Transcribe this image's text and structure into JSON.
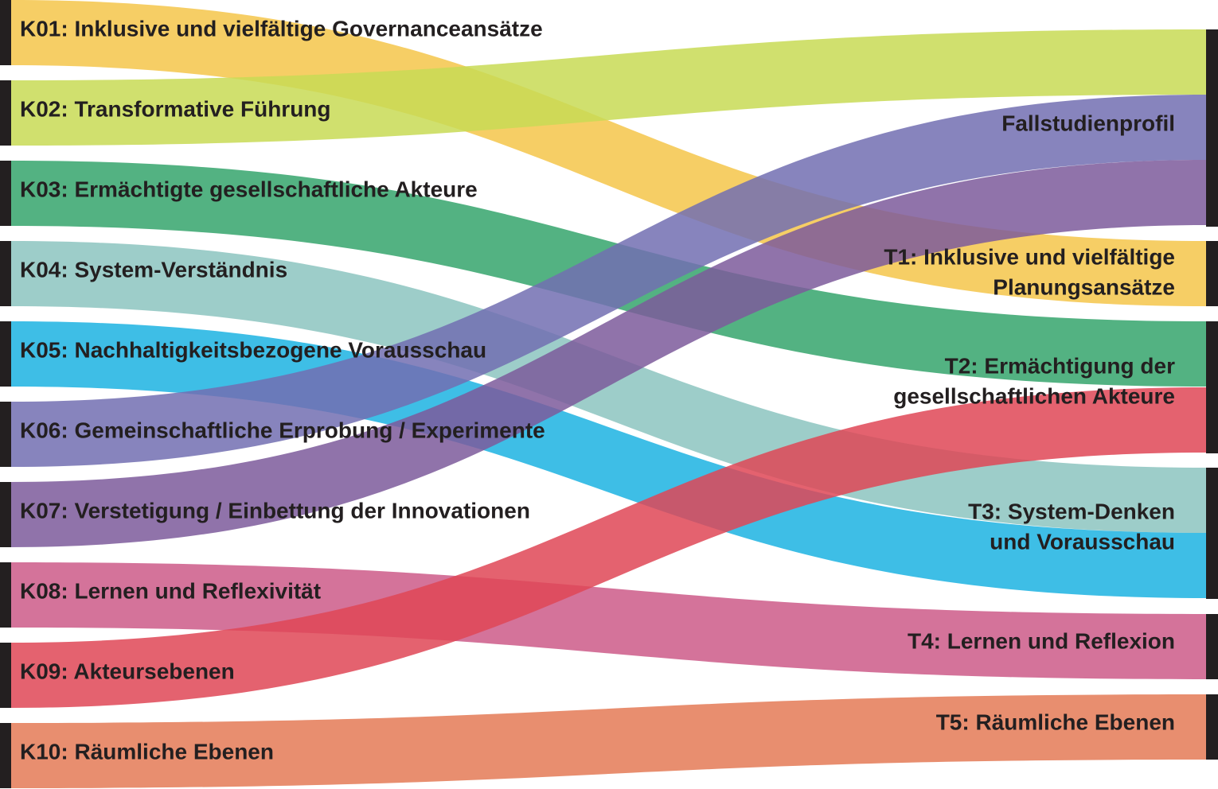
{
  "sources": [
    {
      "label": "K01: Inklusive und vielfältige Governanceansätze"
    },
    {
      "label": "K02: Transformative Führung"
    },
    {
      "label": "K03: Ermächtigte gesellschaftliche Akteure"
    },
    {
      "label": "K04: System-Verständnis"
    },
    {
      "label": "K05: Nachhaltigkeitsbezogene Vorausschau"
    },
    {
      "label": "K06: Gemeinschaftliche Erprobung / Experimente"
    },
    {
      "label": "K07: Verstetigung / Einbettung der Innovationen"
    },
    {
      "label": "K08: Lernen und Reflexivität"
    },
    {
      "label": "K09: Akteursebenen"
    },
    {
      "label": "K10: Räumliche Ebenen"
    }
  ],
  "targets": [
    {
      "lines": [
        "Fallstudienprofil"
      ]
    },
    {
      "lines": [
        "T1: Inklusive und vielfältige",
        "Planungsansätze"
      ]
    },
    {
      "lines": [
        "T2: Ermächtigung der",
        "gesellschaftlichen Akteure"
      ]
    },
    {
      "lines": [
        "T3: System-Denken",
        "und Vorausschau"
      ]
    },
    {
      "lines": [
        "T4: Lernen und Reflexion"
      ]
    },
    {
      "lines": [
        "T5: Räumliche Ebenen"
      ]
    }
  ]
}
